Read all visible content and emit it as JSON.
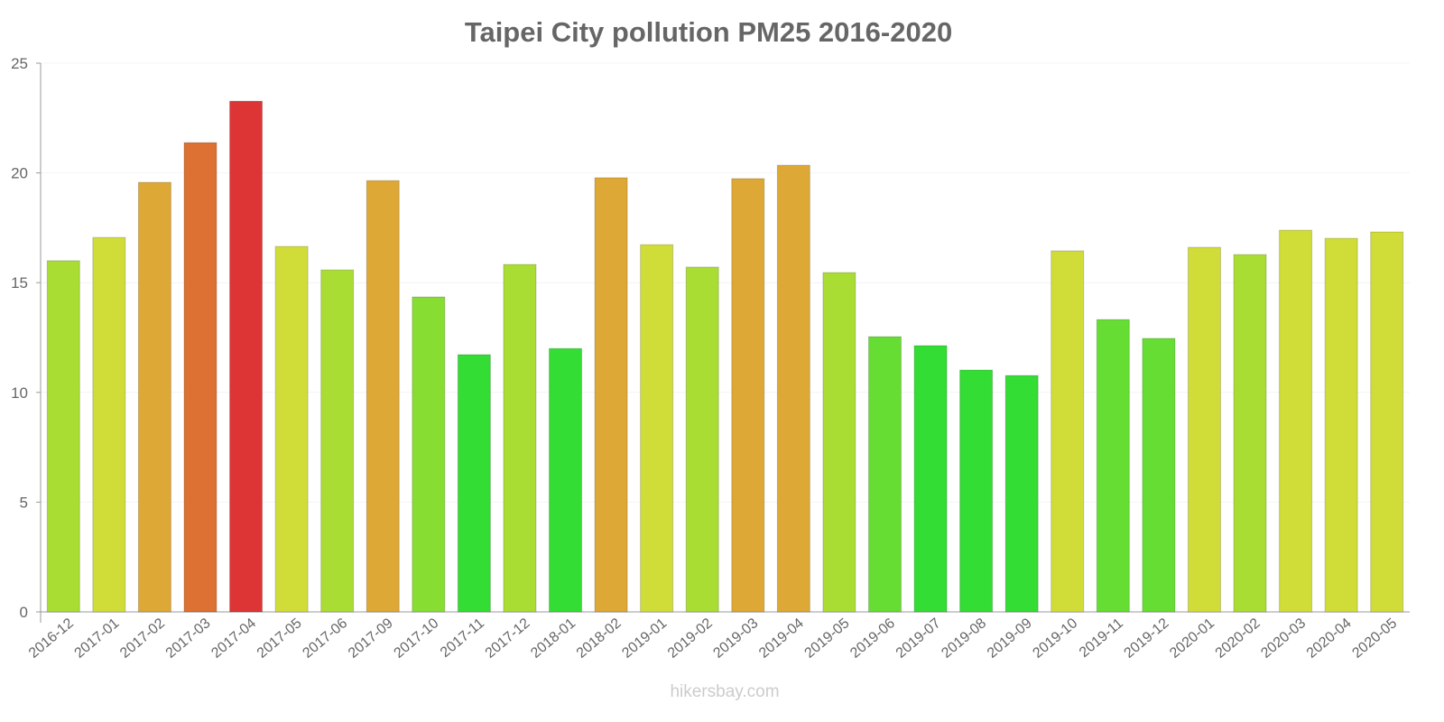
{
  "chart_data": {
    "type": "bar",
    "title": "Taipei City pollution PM25 2016-2020",
    "xlabel": "",
    "ylabel": "",
    "ylim": [
      0,
      25
    ],
    "yticks": [
      "0",
      "5",
      "10",
      "15",
      "20",
      "25"
    ],
    "grid": true,
    "categories": [
      "2016-12",
      "2017-01",
      "2017-02",
      "2017-03",
      "2017-04",
      "2017-05",
      "2017-06",
      "2017-09",
      "2017-10",
      "2017-11",
      "2017-12",
      "2018-01",
      "2018-02",
      "2019-01",
      "2019-02",
      "2019-03",
      "2019-04",
      "2019-05",
      "2019-06",
      "2019-07",
      "2019-08",
      "2019-09",
      "2019-10",
      "2019-11",
      "2019-12",
      "2020-01",
      "2020-02",
      "2020-03",
      "2020-04",
      "2020-05"
    ],
    "values": [
      16.0,
      17.06,
      19.57,
      21.38,
      23.27,
      16.65,
      15.58,
      19.65,
      14.35,
      11.72,
      15.83,
      12.0,
      19.78,
      16.73,
      15.71,
      19.74,
      20.35,
      15.46,
      12.54,
      12.13,
      11.02,
      10.77,
      16.45,
      13.32,
      12.46,
      16.61,
      16.28,
      17.39,
      17.02,
      17.31
    ],
    "colors": [
      "#aadd33",
      "#d0dd38",
      "#dda835",
      "#dd7033",
      "#dd3535",
      "#d0dd38",
      "#aadd33",
      "#dda835",
      "#88dd33",
      "#33dd33",
      "#aadd33",
      "#33dd33",
      "#dda835",
      "#d0dd38",
      "#aadd33",
      "#dda835",
      "#dda835",
      "#aadd33",
      "#66dd33",
      "#33dd33",
      "#33dd33",
      "#33dd33",
      "#d0dd38",
      "#66dd33",
      "#66dd33",
      "#d0dd38",
      "#aadd33",
      "#d0dd38",
      "#d0dd38",
      "#d0dd38"
    ]
  },
  "watermark": "hikersbay.com"
}
